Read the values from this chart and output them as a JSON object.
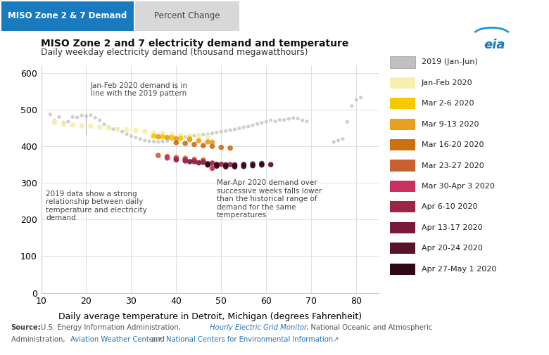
{
  "title": "MISO Zone 2 and 7 electricity demand and temperature",
  "subtitle": "Daily weekday electricity demand (thousand megawatthours)",
  "xlabel": "Daily average temperature in Detroit, Michigan (degrees Fahrenheit)",
  "xlim": [
    10,
    85
  ],
  "ylim": [
    0,
    620
  ],
  "xticks": [
    10,
    20,
    30,
    40,
    50,
    60,
    70,
    80
  ],
  "yticks": [
    0,
    100,
    200,
    300,
    400,
    500,
    600
  ],
  "tab_label1": "MISO Zone 2 & 7 Demand",
  "tab_label2": "Percent Change",
  "legend_labels": [
    "2019 (Jan-Jun)",
    "Jan-Feb 2020",
    "Mar 2-6 2020",
    "Mar 9-13 2020",
    "Mar 16-20 2020",
    "Mar 23-27 2020",
    "Mar 30-Apr 3 2020",
    "Apr 6-10 2020",
    "Apr 13-17 2020",
    "Apr 20-24 2020",
    "Apr 27-May 1 2020"
  ],
  "legend_colors": [
    "#c0c0c0",
    "#f5f0b0",
    "#f5c800",
    "#e8a020",
    "#cc7010",
    "#c86030",
    "#cc3060",
    "#9b2545",
    "#7a1a38",
    "#5a1228",
    "#2e0812"
  ],
  "series": {
    "2019": {
      "color": "#c0c0c0",
      "points": [
        [
          12,
          487
        ],
        [
          13,
          470
        ],
        [
          14,
          480
        ],
        [
          15,
          465
        ],
        [
          16,
          467
        ],
        [
          17,
          480
        ],
        [
          18,
          479
        ],
        [
          19,
          484
        ],
        [
          20,
          482
        ],
        [
          21,
          485
        ],
        [
          22,
          478
        ],
        [
          23,
          471
        ],
        [
          24,
          460
        ],
        [
          25,
          453
        ],
        [
          26,
          447
        ],
        [
          27,
          445
        ],
        [
          28,
          440
        ],
        [
          29,
          433
        ],
        [
          30,
          428
        ],
        [
          31,
          424
        ],
        [
          32,
          420
        ],
        [
          33,
          416
        ],
        [
          34,
          414
        ],
        [
          35,
          413
        ],
        [
          36,
          412
        ],
        [
          37,
          413
        ],
        [
          38,
          415
        ],
        [
          39,
          418
        ],
        [
          40,
          421
        ],
        [
          41,
          424
        ],
        [
          42,
          426
        ],
        [
          43,
          428
        ],
        [
          44,
          429
        ],
        [
          45,
          431
        ],
        [
          46,
          432
        ],
        [
          47,
          433
        ],
        [
          48,
          435
        ],
        [
          49,
          438
        ],
        [
          50,
          440
        ],
        [
          51,
          442
        ],
        [
          52,
          444
        ],
        [
          53,
          446
        ],
        [
          54,
          449
        ],
        [
          55,
          452
        ],
        [
          56,
          454
        ],
        [
          57,
          457
        ],
        [
          58,
          461
        ],
        [
          59,
          464
        ],
        [
          60,
          467
        ],
        [
          61,
          471
        ],
        [
          62,
          468
        ],
        [
          63,
          472
        ],
        [
          64,
          472
        ],
        [
          65,
          475
        ],
        [
          66,
          477
        ],
        [
          67,
          476
        ],
        [
          68,
          471
        ],
        [
          69,
          468
        ],
        [
          75,
          412
        ],
        [
          76,
          416
        ],
        [
          77,
          420
        ],
        [
          78,
          467
        ],
        [
          79,
          510
        ],
        [
          80,
          527
        ],
        [
          81,
          533
        ]
      ]
    },
    "jan_feb_2020": {
      "color": "#f5f0b0",
      "points": [
        [
          13,
          465
        ],
        [
          15,
          460
        ],
        [
          17,
          458
        ],
        [
          19,
          456
        ],
        [
          21,
          455
        ],
        [
          23,
          452
        ],
        [
          25,
          450
        ],
        [
          27,
          447
        ],
        [
          29,
          445
        ],
        [
          31,
          443
        ],
        [
          33,
          440
        ],
        [
          35,
          437
        ],
        [
          37,
          435
        ],
        [
          39,
          432
        ],
        [
          41,
          430
        ],
        [
          43,
          428
        ],
        [
          45,
          427
        ],
        [
          47,
          427
        ]
      ]
    },
    "mar2_6": {
      "color": "#f5c800",
      "points": [
        [
          35,
          428
        ],
        [
          37,
          426
        ],
        [
          39,
          424
        ],
        [
          41,
          422
        ],
        [
          43,
          421
        ]
      ]
    },
    "mar9_13": {
      "color": "#e8a020",
      "points": [
        [
          36,
          426
        ],
        [
          38,
          424
        ],
        [
          40,
          421
        ],
        [
          43,
          418
        ],
        [
          45,
          415
        ],
        [
          47,
          412
        ],
        [
          48,
          411
        ]
      ]
    },
    "mar16_20": {
      "color": "#cc7010",
      "points": [
        [
          40,
          410
        ],
        [
          42,
          408
        ],
        [
          44,
          405
        ],
        [
          46,
          402
        ],
        [
          48,
          400
        ],
        [
          50,
          397
        ],
        [
          52,
          395
        ]
      ]
    },
    "mar23_27": {
      "color": "#c86030",
      "points": [
        [
          36,
          375
        ],
        [
          38,
          372
        ],
        [
          40,
          369
        ],
        [
          42,
          367
        ],
        [
          44,
          364
        ],
        [
          46,
          362
        ]
      ]
    },
    "mar30_apr3": {
      "color": "#cc3060",
      "points": [
        [
          38,
          368
        ],
        [
          40,
          365
        ],
        [
          42,
          363
        ],
        [
          44,
          360
        ],
        [
          46,
          358
        ],
        [
          48,
          340
        ]
      ]
    },
    "apr6_10": {
      "color": "#9b2545",
      "points": [
        [
          40,
          363
        ],
        [
          42,
          360
        ],
        [
          44,
          358
        ],
        [
          46,
          356
        ],
        [
          48,
          354
        ],
        [
          50,
          351
        ],
        [
          52,
          350
        ]
      ]
    },
    "apr13_17": {
      "color": "#7a1a38",
      "points": [
        [
          43,
          358
        ],
        [
          45,
          355
        ],
        [
          47,
          352
        ],
        [
          49,
          350
        ],
        [
          51,
          349
        ],
        [
          53,
          349
        ],
        [
          55,
          350
        ]
      ]
    },
    "apr20_24": {
      "color": "#5a1228",
      "points": [
        [
          47,
          352
        ],
        [
          49,
          350
        ],
        [
          51,
          349
        ],
        [
          53,
          349
        ],
        [
          55,
          350
        ],
        [
          57,
          352
        ],
        [
          59,
          353
        ],
        [
          61,
          350
        ]
      ]
    },
    "apr27_may1": {
      "color": "#2e0812",
      "points": [
        [
          47,
          349
        ],
        [
          49,
          346
        ],
        [
          51,
          344
        ],
        [
          53,
          344
        ],
        [
          55,
          345
        ],
        [
          57,
          347
        ],
        [
          59,
          349
        ]
      ]
    }
  }
}
